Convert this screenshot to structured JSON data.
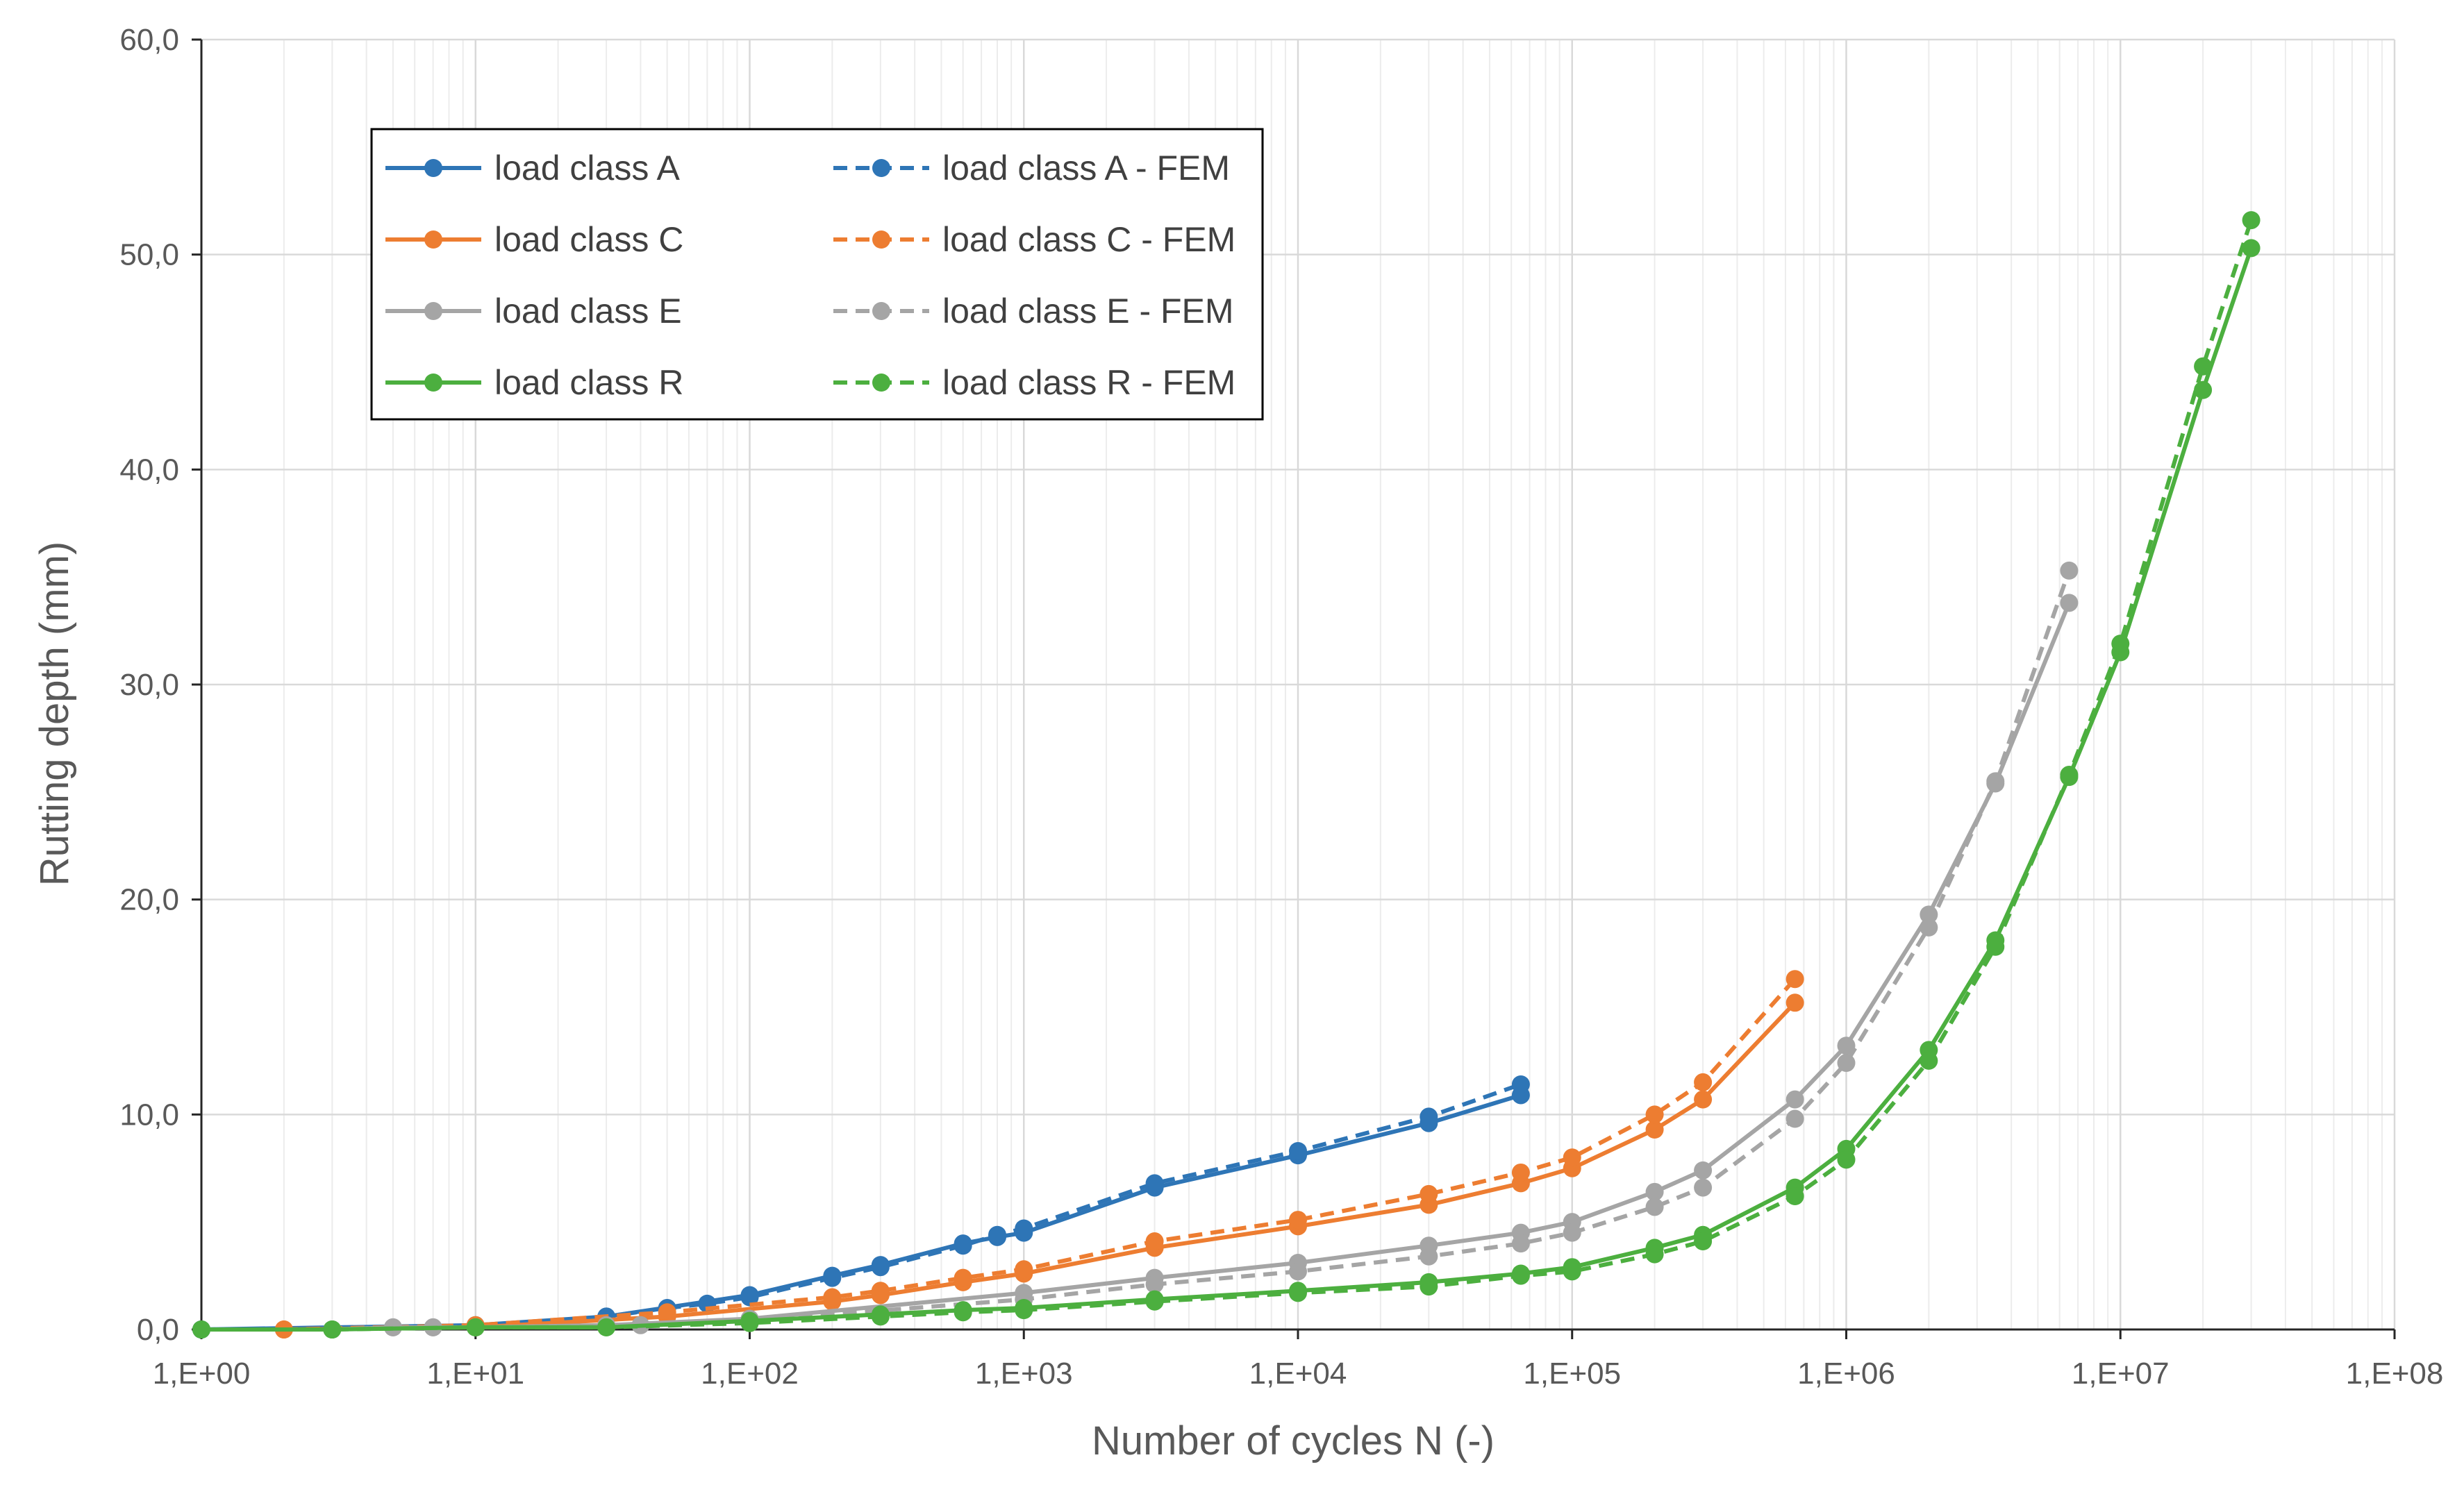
{
  "chart_data": {
    "type": "line",
    "xlabel": "Number of cycles N (-)",
    "ylabel": "Rutting depth (mm)",
    "x_scale": "log",
    "xlim": [
      1,
      100000000
    ],
    "ylim": [
      0,
      60
    ],
    "x_ticks": [
      {
        "value": 1,
        "label": "1,E+00"
      },
      {
        "value": 10,
        "label": "1,E+01"
      },
      {
        "value": 100,
        "label": "1,E+02"
      },
      {
        "value": 1000,
        "label": "1,E+03"
      },
      {
        "value": 10000,
        "label": "1,E+04"
      },
      {
        "value": 100000,
        "label": "1,E+05"
      },
      {
        "value": 1000000,
        "label": "1,E+06"
      },
      {
        "value": 10000000,
        "label": "1,E+07"
      },
      {
        "value": 100000000,
        "label": "1,E+08"
      }
    ],
    "y_ticks": [
      {
        "value": 0,
        "label": "0,0"
      },
      {
        "value": 10,
        "label": "10,0"
      },
      {
        "value": 20,
        "label": "20,0"
      },
      {
        "value": 30,
        "label": "30,0"
      },
      {
        "value": 40,
        "label": "40,0"
      },
      {
        "value": 50,
        "label": "50,0"
      },
      {
        "value": 60,
        "label": "60,0"
      }
    ],
    "grid": "major and minor vertical, major horizontal",
    "legend_position": "top-left",
    "series": [
      {
        "name": "load class A",
        "color": "#2E75B6",
        "dashed": false,
        "x": [
          1,
          10,
          30,
          100,
          200,
          300,
          600,
          800,
          1000,
          3000,
          10000,
          30000,
          65000
        ],
        "y": [
          0.0,
          0.2,
          0.6,
          1.6,
          2.5,
          3.0,
          4.0,
          4.3,
          4.5,
          6.6,
          8.1,
          9.6,
          10.9
        ]
      },
      {
        "name": "load class A - FEM",
        "color": "#2E75B6",
        "dashed": true,
        "x": [
          1,
          10,
          30,
          50,
          70,
          100,
          200,
          300,
          600,
          800,
          1000,
          3000,
          10000,
          30000,
          65000
        ],
        "y": [
          0.0,
          0.1,
          0.6,
          1.0,
          1.2,
          1.5,
          2.4,
          2.9,
          3.9,
          4.4,
          4.7,
          6.8,
          8.3,
          9.9,
          11.4
        ]
      },
      {
        "name": "load class C",
        "color": "#ED7D31",
        "dashed": false,
        "x": [
          2,
          10,
          50,
          200,
          300,
          600,
          1000,
          3000,
          10000,
          30000,
          65000,
          100000,
          200000,
          300000,
          650000
        ],
        "y": [
          0.0,
          0.1,
          0.6,
          1.3,
          1.6,
          2.2,
          2.6,
          3.8,
          4.8,
          5.8,
          6.8,
          7.5,
          9.3,
          10.7,
          15.2
        ]
      },
      {
        "name": "load class C - FEM",
        "color": "#ED7D31",
        "dashed": true,
        "x": [
          2,
          10,
          50,
          200,
          300,
          600,
          1000,
          3000,
          10000,
          30000,
          65000,
          100000,
          200000,
          300000,
          650000
        ],
        "y": [
          0.0,
          0.2,
          0.8,
          1.5,
          1.8,
          2.4,
          2.8,
          4.1,
          5.1,
          6.3,
          7.3,
          8.0,
          10.0,
          11.5,
          16.3
        ]
      },
      {
        "name": "load class E",
        "color": "#A5A5A5",
        "dashed": false,
        "x": [
          3,
          5,
          7,
          10,
          30,
          100,
          1000,
          3000,
          10000,
          30000,
          65000,
          100000,
          200000,
          300000,
          650000,
          1000000,
          2000000,
          3500000,
          6500000
        ],
        "y": [
          0.0,
          0.1,
          0.1,
          0.1,
          0.2,
          0.5,
          1.7,
          2.4,
          3.1,
          3.9,
          4.5,
          5.0,
          6.4,
          7.4,
          10.7,
          13.2,
          19.3,
          25.4,
          33.8
        ]
      },
      {
        "name": "load class E - FEM",
        "color": "#A5A5A5",
        "dashed": true,
        "x": [
          3,
          5,
          7,
          10,
          40,
          100,
          1000,
          3000,
          10000,
          30000,
          65000,
          100000,
          200000,
          300000,
          650000,
          1000000,
          2000000,
          3500000,
          6500000
        ],
        "y": [
          0.0,
          0.1,
          0.1,
          0.1,
          0.2,
          0.4,
          1.4,
          2.1,
          2.7,
          3.4,
          4.0,
          4.5,
          5.7,
          6.6,
          9.8,
          12.4,
          18.7,
          25.5,
          35.3
        ]
      },
      {
        "name": "load class R",
        "color": "#4CAF3F",
        "dashed": false,
        "x": [
          1,
          3,
          10,
          30,
          100,
          300,
          600,
          1000,
          3000,
          10000,
          30000,
          65000,
          100000,
          200000,
          300000,
          650000,
          1000000,
          2000000,
          3500000,
          6500000,
          10000000,
          20000000,
          30000000
        ],
        "y": [
          0.0,
          0.0,
          0.1,
          0.1,
          0.4,
          0.7,
          0.9,
          1.0,
          1.4,
          1.8,
          2.2,
          2.6,
          2.9,
          3.8,
          4.4,
          6.6,
          8.4,
          13.0,
          18.1,
          25.7,
          31.5,
          43.7,
          50.3
        ]
      },
      {
        "name": "load class R - FEM",
        "color": "#4CAF3F",
        "dashed": true,
        "x": [
          1,
          3,
          10,
          30,
          100,
          300,
          600,
          1000,
          3000,
          10000,
          30000,
          65000,
          100000,
          200000,
          300000,
          650000,
          1000000,
          2000000,
          3500000,
          6500000,
          10000000,
          20000000,
          30000000
        ],
        "y": [
          0.0,
          0.0,
          0.1,
          0.1,
          0.3,
          0.6,
          0.8,
          0.9,
          1.3,
          1.7,
          2.0,
          2.5,
          2.7,
          3.5,
          4.1,
          6.2,
          7.9,
          12.5,
          17.8,
          25.8,
          31.9,
          44.8,
          51.6
        ]
      }
    ]
  }
}
